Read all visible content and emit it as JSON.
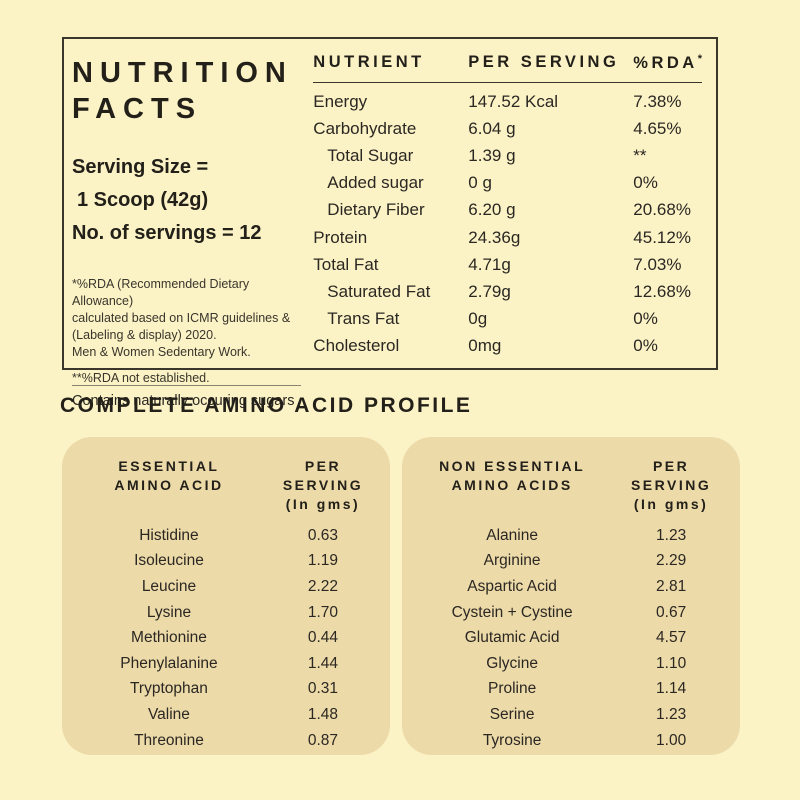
{
  "colors": {
    "background": "#FBF3C6",
    "card": "#ECDAA9",
    "text": "#2B2722",
    "border": "#3B362C"
  },
  "nutrition_panel": {
    "title_line1": "NUTRITION",
    "title_line2": "FACTS",
    "serving": {
      "size_label": "Serving Size =",
      "size_value": "1 Scoop (42g)",
      "servings_count": "No. of servings = 12"
    },
    "footnotes": {
      "rda_note_lines": [
        "*%RDA (Recommended Dietary Allowance)",
        "calculated based on ICMR guidelines &",
        "(Labeling & display) 2020.",
        "Men & Women Sedentary Work."
      ],
      "not_established": "**%RDA not established.",
      "contains": "Contains naturally occuring sugars"
    },
    "table": {
      "headers": {
        "nutrient": "NUTRIENT",
        "per_serving": "PER SERVING",
        "rda": "%RDA",
        "rda_mark": "*"
      },
      "rows": [
        {
          "name": "Energy",
          "per_serving": "147.52 Kcal",
          "rda": "7.38%"
        },
        {
          "name": "Carbohydrate",
          "per_serving": "6.04 g",
          "rda": "4.65%"
        },
        {
          "name": "Total Sugar",
          "per_serving": "1.39 g",
          "rda": "**"
        },
        {
          "name": "Added sugar",
          "per_serving": "0 g",
          "rda": "0%"
        },
        {
          "name": "Dietary Fiber",
          "per_serving": "6.20 g",
          "rda": "20.68%"
        },
        {
          "name": "Protein",
          "per_serving": "24.36g",
          "rda": "45.12%"
        },
        {
          "name": "Total Fat",
          "per_serving": "4.71g",
          "rda": "7.03%"
        },
        {
          "name": "Saturated Fat",
          "per_serving": "2.79g",
          "rda": "12.68%"
        },
        {
          "name": "Trans Fat",
          "per_serving": "0g",
          "rda": "0%"
        },
        {
          "name": "Cholesterol",
          "per_serving": "0mg",
          "rda": "0%"
        }
      ]
    }
  },
  "amino_profile": {
    "heading": "COMPLETE AMINO ACID PROFILE",
    "per_serving_line1": "PER SERVING",
    "per_serving_line2": "(In gms)",
    "essential": {
      "title_line1": "ESSENTIAL",
      "title_line2": "AMINO ACID",
      "rows": [
        {
          "name": "Histidine",
          "value": "0.63"
        },
        {
          "name": "Isoleucine",
          "value": "1.19"
        },
        {
          "name": "Leucine",
          "value": "2.22"
        },
        {
          "name": "Lysine",
          "value": "1.70"
        },
        {
          "name": "Methionine",
          "value": "0.44"
        },
        {
          "name": "Phenylalanine",
          "value": "1.44"
        },
        {
          "name": "Tryptophan",
          "value": "0.31"
        },
        {
          "name": "Valine",
          "value": "1.48"
        },
        {
          "name": "Threonine",
          "value": "0.87"
        }
      ]
    },
    "non_essential": {
      "title_line1": "NON ESSENTIAL",
      "title_line2": "AMINO ACIDS",
      "rows": [
        {
          "name": "Alanine",
          "value": "1.23"
        },
        {
          "name": "Arginine",
          "value": "2.29"
        },
        {
          "name": "Aspartic Acid",
          "value": "2.81"
        },
        {
          "name": "Cystein + Cystine",
          "value": "0.67"
        },
        {
          "name": "Glutamic Acid",
          "value": "4.57"
        },
        {
          "name": "Glycine",
          "value": "1.10"
        },
        {
          "name": "Proline",
          "value": "1.14"
        },
        {
          "name": "Serine",
          "value": "1.23"
        },
        {
          "name": "Tyrosine",
          "value": "1.00"
        }
      ]
    }
  }
}
